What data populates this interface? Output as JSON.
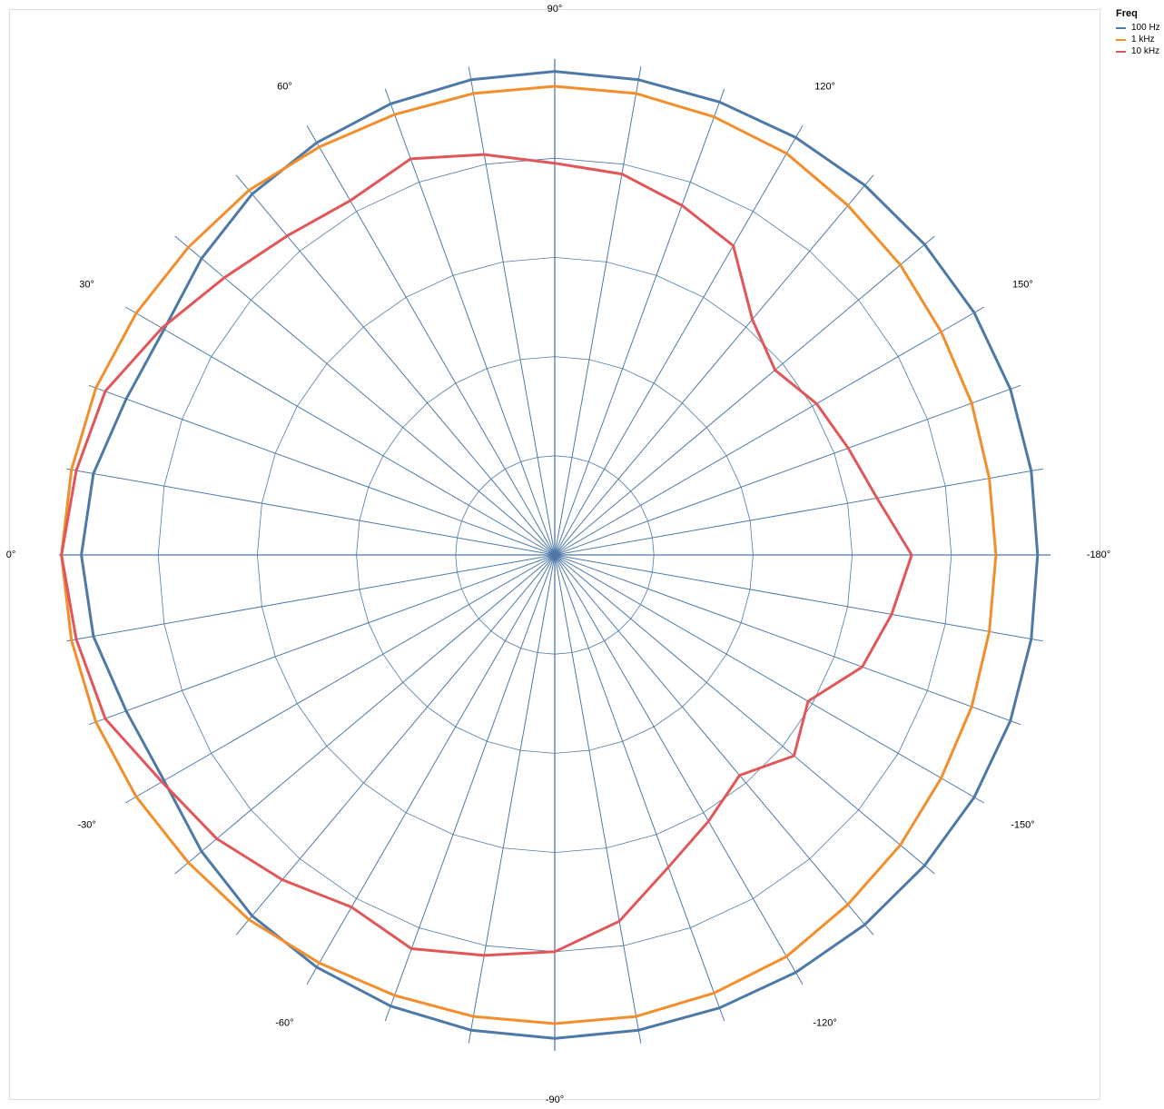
{
  "chart_data": {
    "type": "polar-line",
    "title": "",
    "legend": {
      "title": "Freq",
      "placement": "top-right"
    },
    "angle_unit": "degrees",
    "angle_direction": "0° at left, 90° at top, ±180° at right",
    "angle_labels": [
      {
        "angle": 0,
        "label": "0°"
      },
      {
        "angle": 30,
        "label": "30°"
      },
      {
        "angle": 60,
        "label": "60°"
      },
      {
        "angle": 90,
        "label": "90°"
      },
      {
        "angle": 120,
        "label": "120°"
      },
      {
        "angle": 150,
        "label": "150°"
      },
      {
        "angle": 180,
        "label": "-180°"
      },
      {
        "angle": -150,
        "label": "-150°"
      },
      {
        "angle": -120,
        "label": "-120°"
      },
      {
        "angle": -90,
        "label": "-90°"
      },
      {
        "angle": -60,
        "label": "-60°"
      },
      {
        "angle": -30,
        "label": "-30°"
      }
    ],
    "radial_range": [
      0,
      1
    ],
    "radial_grid": [
      0.2,
      0.4,
      0.6,
      0.8
    ],
    "spoke_step_deg": 10,
    "grid": true,
    "angles": [
      0,
      10,
      20,
      30,
      40,
      50,
      60,
      70,
      80,
      90,
      100,
      110,
      120,
      130,
      140,
      150,
      160,
      170,
      180,
      -170,
      -160,
      -150,
      -140,
      -130,
      -120,
      -110,
      -100,
      -90,
      -80,
      -70,
      -60,
      -50,
      -40,
      -30,
      -20,
      -10
    ],
    "series": [
      {
        "name": "100 Hz",
        "color": "#4e79a7",
        "values": [
          0.955,
          0.945,
          0.92,
          0.91,
          0.93,
          0.95,
          0.96,
          0.968,
          0.973,
          0.975,
          0.973,
          0.972,
          0.972,
          0.973,
          0.974,
          0.977,
          0.978,
          0.976,
          0.974,
          0.976,
          0.978,
          0.977,
          0.974,
          0.973,
          0.972,
          0.972,
          0.973,
          0.975,
          0.973,
          0.968,
          0.96,
          0.95,
          0.93,
          0.91,
          0.92,
          0.945
        ]
      },
      {
        "name": "1 kHz",
        "color": "#f28e2b",
        "values": [
          0.995,
          0.99,
          0.985,
          0.975,
          0.965,
          0.96,
          0.95,
          0.945,
          0.945,
          0.945,
          0.945,
          0.94,
          0.935,
          0.92,
          0.91,
          0.9,
          0.895,
          0.89,
          0.89,
          0.89,
          0.895,
          0.9,
          0.91,
          0.92,
          0.935,
          0.94,
          0.945,
          0.945,
          0.945,
          0.945,
          0.95,
          0.96,
          0.965,
          0.975,
          0.985,
          0.99
        ]
      },
      {
        "name": "10 kHz",
        "color": "#e15759",
        "values": [
          0.995,
          0.98,
          0.965,
          0.915,
          0.87,
          0.84,
          0.825,
          0.85,
          0.82,
          0.79,
          0.78,
          0.75,
          0.72,
          0.62,
          0.58,
          0.61,
          0.63,
          0.66,
          0.72,
          0.69,
          0.66,
          0.59,
          0.63,
          0.58,
          0.62,
          0.67,
          0.75,
          0.8,
          0.82,
          0.845,
          0.82,
          0.855,
          0.89,
          0.915,
          0.965,
          0.98
        ]
      }
    ]
  }
}
